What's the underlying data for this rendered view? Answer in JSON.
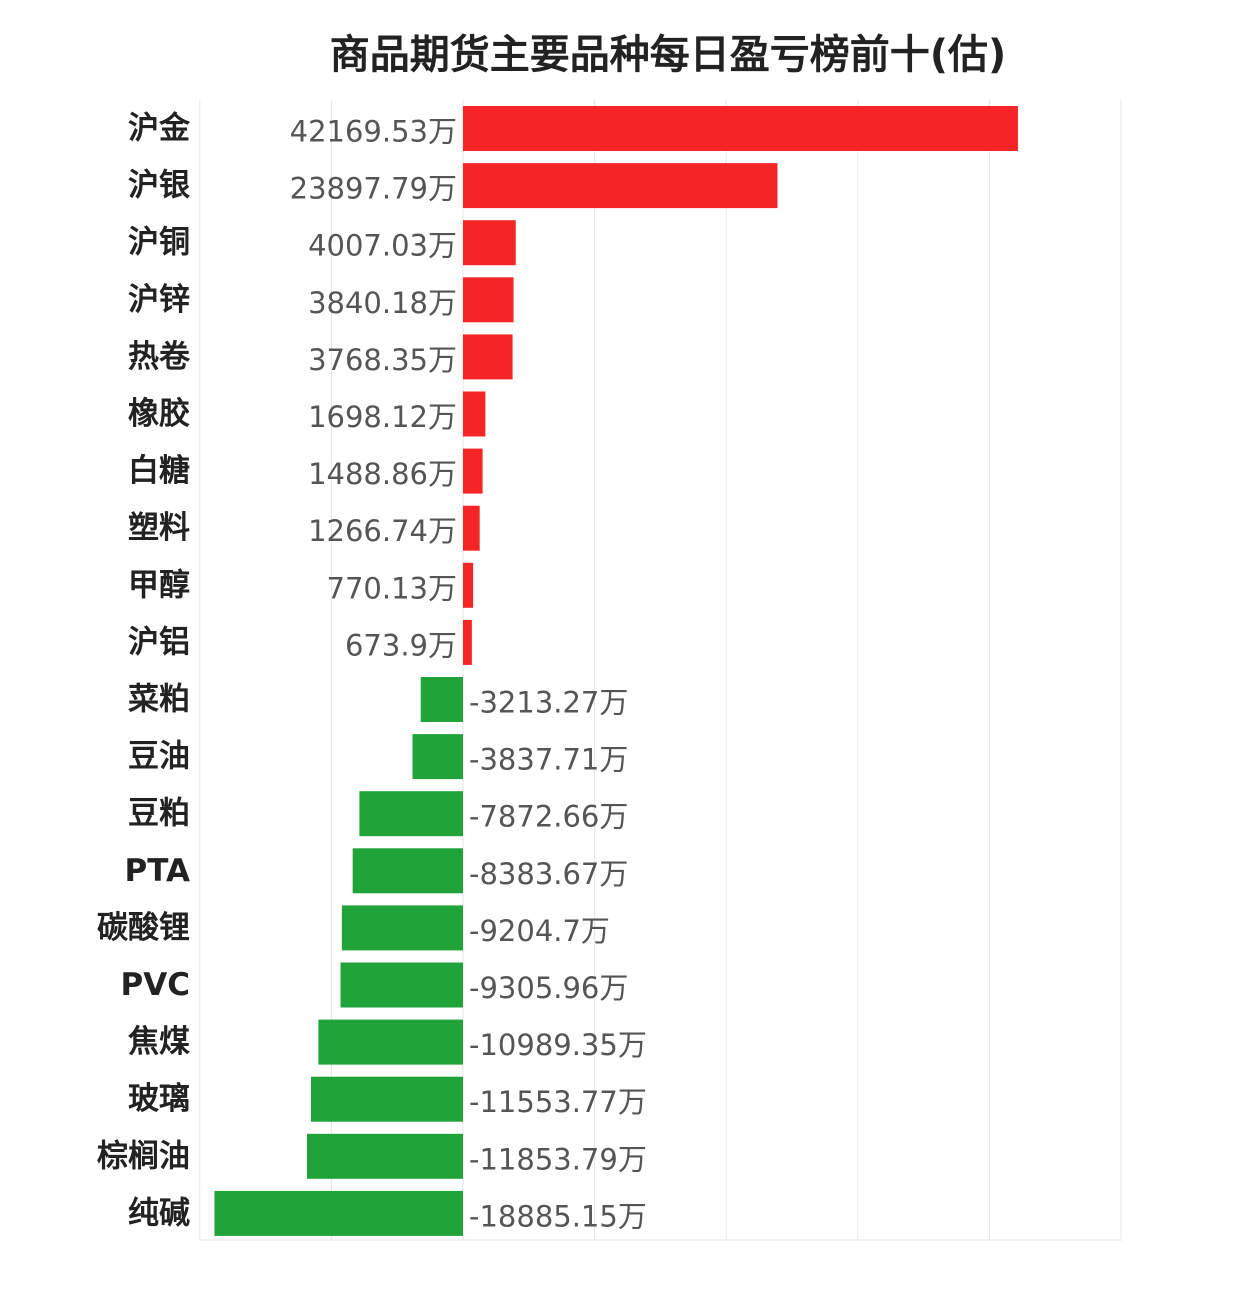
{
  "chart_data": {
    "type": "bar",
    "orientation": "horizontal",
    "title": "商品期货主要品种每日盈亏榜前十(估)",
    "xlabel": "",
    "ylabel": "",
    "xlim": [
      -20000,
      50000
    ],
    "grid": true,
    "unit_suffix": "万",
    "categories": [
      "沪金",
      "沪银",
      "沪铜",
      "沪锌",
      "热卷",
      "橡胶",
      "白糖",
      "塑料",
      "甲醇",
      "沪铝",
      "菜粕",
      "豆油",
      "豆粕",
      "PTA",
      "碳酸锂",
      "PVC",
      "焦煤",
      "玻璃",
      "棕榈油",
      "纯碱"
    ],
    "values": [
      42169.53,
      23897.79,
      4007.03,
      3840.18,
      3768.35,
      1698.12,
      1488.86,
      1266.74,
      770.13,
      673.9,
      -3213.27,
      -3837.71,
      -7872.66,
      -8383.67,
      -9204.7,
      -9305.96,
      -10989.35,
      -11553.77,
      -11853.79,
      -18885.15
    ],
    "value_labels": [
      "42169.53万",
      "23897.79万",
      "4007.03万",
      "3840.18万",
      "3768.35万",
      "1698.12万",
      "1488.86万",
      "1266.74万",
      "770.13万",
      "673.9万",
      "-3213.27万",
      "-3837.71万",
      "-7872.66万",
      "-8383.67万",
      "-9204.7万",
      "-9305.96万",
      "-10989.35万",
      "-11553.77万",
      "-11853.79万",
      "-18885.15万"
    ],
    "colors": {
      "positive": "#f52525",
      "negative": "#20a338",
      "grid": "#e6e6e6"
    }
  }
}
